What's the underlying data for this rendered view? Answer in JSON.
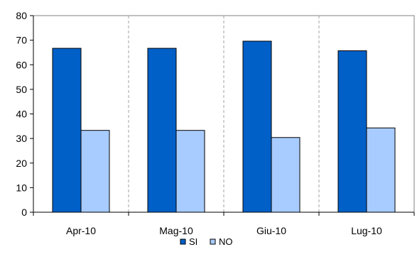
{
  "chart_data": {
    "type": "bar",
    "categories": [
      "Apr-10",
      "Mag-10",
      "Giu-10",
      "Lug-10"
    ],
    "series": [
      {
        "name": "SI",
        "values": [
          66.7,
          66.7,
          69.6,
          65.7
        ],
        "color": "#0060C8"
      },
      {
        "name": "NO",
        "values": [
          33.3,
          33.3,
          30.4,
          34.3
        ],
        "color": "#A8CCFF"
      }
    ],
    "ylim": [
      0,
      80
    ],
    "yticks": [
      0,
      10,
      20,
      30,
      40,
      50,
      60,
      70,
      80
    ],
    "title": "",
    "xlabel": "",
    "ylabel": "",
    "grid": "vertical dashed between categories",
    "legend_position": "bottom-center"
  }
}
